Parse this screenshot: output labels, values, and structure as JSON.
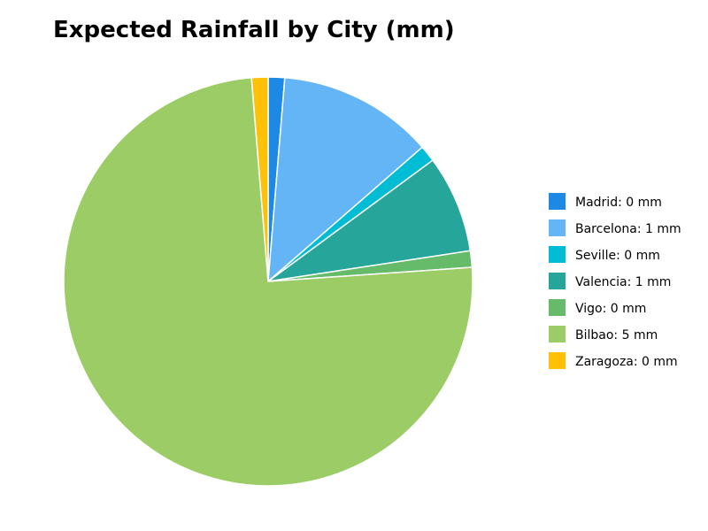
{
  "chart_data": {
    "type": "pie",
    "title": "Expected Rainfall by City (mm)",
    "unit": "mm",
    "start_angle_deg": 0,
    "direction": "clockwise",
    "legend_placement": "right",
    "slices": [
      {
        "label": "Madrid: 0 mm",
        "category": "Madrid",
        "share": 0.013,
        "color": "#1E88E5"
      },
      {
        "label": "Barcelona: 1 mm",
        "category": "Barcelona",
        "share": 0.123,
        "color": "#64B5F6"
      },
      {
        "label": "Seville: 0 mm",
        "category": "Seville",
        "share": 0.013,
        "color": "#00BCD4"
      },
      {
        "label": "Valencia: 1 mm",
        "category": "Valencia",
        "share": 0.077,
        "color": "#26A69A"
      },
      {
        "label": "Vigo: 0 mm",
        "category": "Vigo",
        "share": 0.013,
        "color": "#66BB6A"
      },
      {
        "label": "Bilbao: 5 mm",
        "category": "Bilbao",
        "share": 0.748,
        "color": "#9CCC65"
      },
      {
        "label": "Zaragoza: 0 mm",
        "category": "Zaragoza",
        "share": 0.013,
        "color": "#FFC107"
      }
    ]
  }
}
